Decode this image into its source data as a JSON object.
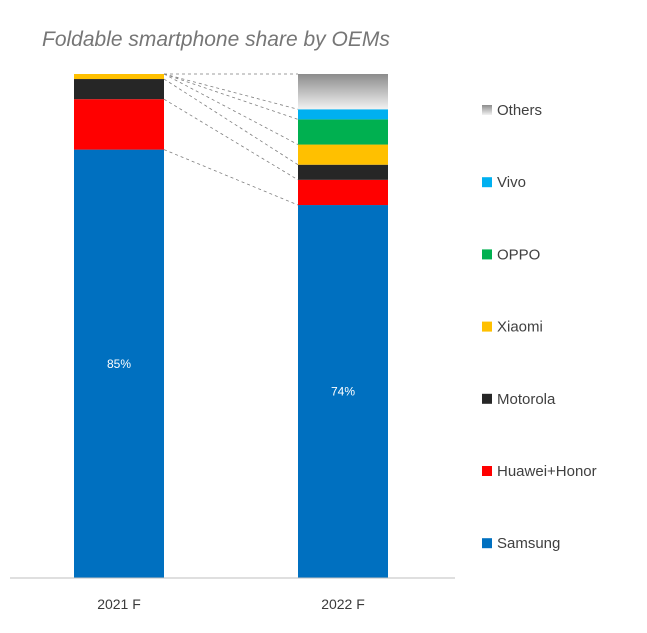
{
  "chart_data": {
    "type": "bar",
    "stacked": true,
    "normalized": true,
    "title": "Foldable smartphone share by OEMs",
    "xlabel": "",
    "ylabel": "",
    "ylim": [
      0,
      100
    ],
    "grid": false,
    "legend_position": "right",
    "categories": [
      "2021 F",
      "2022 F"
    ],
    "series": [
      {
        "name": "Samsung",
        "values": [
          85,
          74
        ],
        "color": "#0070C0",
        "labels": [
          "85%",
          "74%"
        ]
      },
      {
        "name": "Huawei+Honor",
        "values": [
          10,
          5
        ],
        "color": "#FF0000",
        "labels": [
          "",
          ""
        ]
      },
      {
        "name": "Motorola",
        "values": [
          4,
          3
        ],
        "color": "#262626",
        "labels": [
          "",
          ""
        ]
      },
      {
        "name": "Xiaomi",
        "values": [
          1,
          4
        ],
        "color": "#FFC000",
        "labels": [
          "",
          ""
        ]
      },
      {
        "name": "OPPO",
        "values": [
          0,
          5
        ],
        "color": "#00B050",
        "labels": [
          "",
          ""
        ]
      },
      {
        "name": "Vivo",
        "values": [
          0,
          2
        ],
        "color": "#00B0F0",
        "labels": [
          "",
          ""
        ]
      },
      {
        "name": "Others",
        "values": [
          0,
          7
        ],
        "color": "#BFBFBF",
        "labels": [
          "",
          ""
        ]
      }
    ]
  }
}
